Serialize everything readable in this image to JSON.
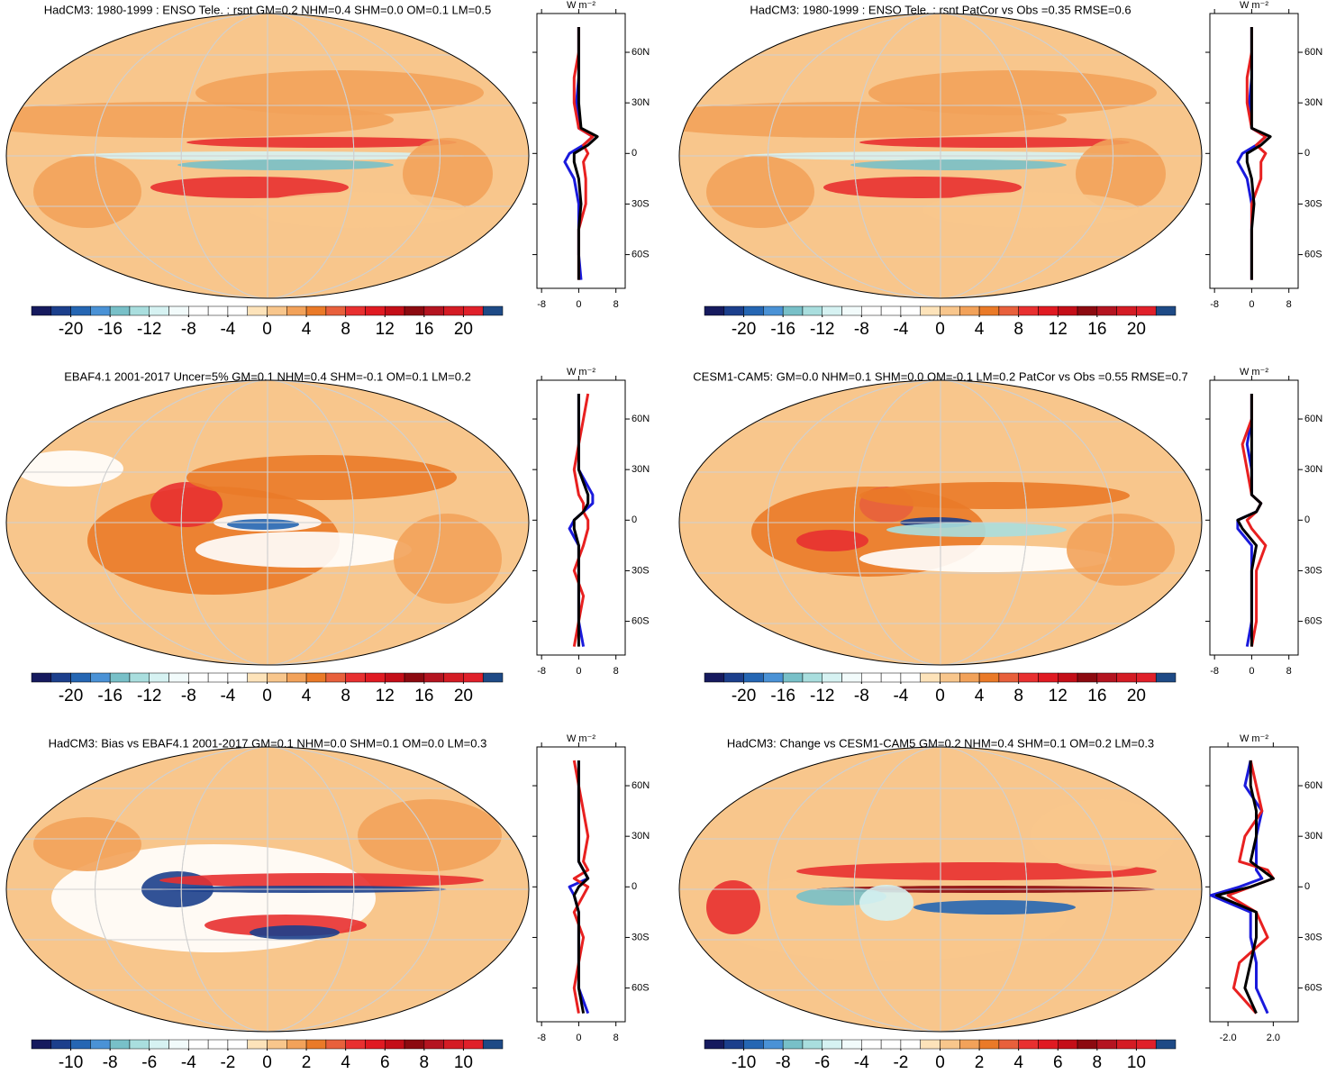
{
  "chart_data": [
    {
      "type": "map",
      "title": "HadCM3: 1980-1999 : ENSO Tele. : rsnt GM=0.2 NHM=0.4 SHM=0.0 OM=0.1 LM=0.5",
      "colorbar": {
        "colors": [
          "#161a5e",
          "#1c3f8c",
          "#2566b3",
          "#4a92d6",
          "#78c0c8",
          "#a9dede",
          "#d6f2f2",
          "#f2fbfb",
          "#ffffff",
          "#ffffff",
          "#ffffff",
          "#fde3ba",
          "#f8c68c",
          "#f2a25a",
          "#ea7a28",
          "#e8603c",
          "#e83030",
          "#e01a22",
          "#c40e18",
          "#8c0a10",
          "#b41420",
          "#d41c24",
          "#e0202a",
          "#1e4a86"
        ],
        "lim": [
          -24,
          24
        ],
        "ticks": [
          -20,
          -16,
          -12,
          -8,
          -4,
          0,
          4,
          8,
          12,
          16,
          20
        ]
      },
      "zonal": {
        "unit": "W m⁻²",
        "xlim": [
          -9,
          10
        ],
        "xticks": [
          -8,
          0,
          8
        ],
        "ylim": [
          -80,
          83
        ],
        "yticks": [
          {
            "value": 60,
            "label": "60N"
          },
          {
            "value": 30,
            "label": "30N"
          },
          0,
          {
            "value": -30,
            "label": "30S"
          },
          {
            "value": -60,
            "label": "60S"
          }
        ],
        "y": [
          -75,
          -60,
          -45,
          -30,
          -15,
          -5,
          0,
          5,
          10,
          15,
          30,
          45,
          60,
          75
        ],
        "series": [
          {
            "color": "#1a1adc",
            "values": [
              0.5,
              0,
              0,
              0,
              -1,
              -3,
              -2,
              1,
              3,
              0,
              -0.5,
              0,
              0,
              0
            ]
          },
          {
            "color": "#e82020",
            "values": [
              0,
              0,
              0,
              1.5,
              1.5,
              1,
              2,
              1,
              3,
              0,
              -1,
              -1,
              0,
              0
            ]
          },
          {
            "color": "#000000",
            "values": [
              0,
              0,
              0,
              0.5,
              0,
              -1,
              -1,
              2,
              4,
              0.5,
              0,
              0,
              0,
              0
            ]
          }
        ]
      }
    },
    {
      "type": "map",
      "title": "HadCM3: 1980-1999 : ENSO Tele. : rsnt PatCor vs Obs =0.35 RMSE=0.6",
      "colorbar": {
        "colors": [
          "#161a5e",
          "#1c3f8c",
          "#2566b3",
          "#4a92d6",
          "#78c0c8",
          "#a9dede",
          "#d6f2f2",
          "#f2fbfb",
          "#ffffff",
          "#ffffff",
          "#ffffff",
          "#fde3ba",
          "#f8c68c",
          "#f2a25a",
          "#ea7a28",
          "#e8603c",
          "#e83030",
          "#e01a22",
          "#c40e18",
          "#8c0a10",
          "#b41420",
          "#d41c24",
          "#e0202a",
          "#1e4a86"
        ],
        "lim": [
          -24,
          24
        ],
        "ticks": [
          -20,
          -16,
          -12,
          -8,
          -4,
          0,
          4,
          8,
          12,
          16,
          20
        ]
      },
      "zonal": {
        "unit": "W m⁻²",
        "xlim": [
          -9,
          10
        ],
        "xticks": [
          -8,
          0,
          8
        ],
        "ylim": [
          -80,
          83
        ],
        "yticks": [
          {
            "value": 60,
            "label": "60N"
          },
          {
            "value": 30,
            "label": "30N"
          },
          0,
          {
            "value": -30,
            "label": "30S"
          },
          {
            "value": -60,
            "label": "60S"
          }
        ],
        "y": [
          -75,
          -60,
          -45,
          -30,
          -15,
          -5,
          0,
          5,
          10,
          15,
          30,
          45,
          60,
          75
        ],
        "series": [
          {
            "color": "#1a1adc",
            "values": [
              0,
              0,
              0,
              0,
              -1,
              -3,
              -2,
              1,
              3,
              0,
              -0.5,
              0,
              0,
              0
            ]
          },
          {
            "color": "#e82020",
            "values": [
              0,
              0,
              0,
              0,
              2,
              2,
              3,
              1,
              3,
              0,
              -1,
              -1,
              0,
              0
            ]
          },
          {
            "color": "#000000",
            "values": [
              0,
              0,
              0,
              0.5,
              0,
              -1,
              -1,
              2,
              4,
              0,
              0,
              0,
              0,
              0
            ]
          }
        ]
      }
    },
    {
      "type": "map",
      "title": "EBAF4.1 2001-2017 Uncer=5% GM=0.1 NHM=0.4 SHM=-0.1 OM=0.1 LM=0.2",
      "colorbar": {
        "colors": [
          "#161a5e",
          "#1c3f8c",
          "#2566b3",
          "#4a92d6",
          "#78c0c8",
          "#a9dede",
          "#d6f2f2",
          "#f2fbfb",
          "#ffffff",
          "#ffffff",
          "#ffffff",
          "#fde3ba",
          "#f8c68c",
          "#f2a25a",
          "#ea7a28",
          "#e8603c",
          "#e83030",
          "#e01a22",
          "#c40e18",
          "#8c0a10",
          "#b41420",
          "#d41c24",
          "#e0202a",
          "#1e4a86"
        ],
        "lim": [
          -24,
          24
        ],
        "ticks": [
          -20,
          -16,
          -12,
          -8,
          -4,
          0,
          4,
          8,
          12,
          16,
          20
        ]
      },
      "zonal": {
        "unit": "W m⁻²",
        "xlim": [
          -9,
          10
        ],
        "xticks": [
          -8,
          0,
          8
        ],
        "ylim": [
          -80,
          83
        ],
        "yticks": [
          {
            "value": 60,
            "label": "60N"
          },
          {
            "value": 30,
            "label": "30N"
          },
          0,
          {
            "value": -30,
            "label": "30S"
          },
          {
            "value": -60,
            "label": "60S"
          }
        ],
        "y": [
          -75,
          -60,
          -45,
          -30,
          -15,
          -5,
          0,
          5,
          10,
          15,
          30,
          45,
          60,
          75
        ],
        "series": [
          {
            "color": "#1a1adc",
            "values": [
              1,
              0,
              0,
              0,
              0,
              -2,
              -1,
              1,
              3,
              3,
              0,
              0,
              0,
              0
            ]
          },
          {
            "color": "#e82020",
            "values": [
              -1,
              0,
              1,
              -1,
              1,
              2,
              2,
              1,
              1,
              0,
              -1,
              0,
              1,
              2
            ]
          },
          {
            "color": "#000000",
            "values": [
              0,
              0,
              0,
              0,
              0,
              -1,
              -1,
              1,
              2,
              2,
              0,
              0,
              0,
              0
            ]
          }
        ]
      }
    },
    {
      "type": "map",
      "title": "CESM1-CAM5: GM=0.0 NHM=0.1 SHM=0.0 OM=-0.1 LM=0.2 PatCor vs Obs =0.55 RMSE=0.7",
      "colorbar": {
        "colors": [
          "#161a5e",
          "#1c3f8c",
          "#2566b3",
          "#4a92d6",
          "#78c0c8",
          "#a9dede",
          "#d6f2f2",
          "#f2fbfb",
          "#ffffff",
          "#ffffff",
          "#ffffff",
          "#fde3ba",
          "#f8c68c",
          "#f2a25a",
          "#ea7a28",
          "#e8603c",
          "#e83030",
          "#e01a22",
          "#c40e18",
          "#8c0a10",
          "#b41420",
          "#d41c24",
          "#e0202a",
          "#1e4a86"
        ],
        "lim": [
          -24,
          24
        ],
        "ticks": [
          -20,
          -16,
          -12,
          -8,
          -4,
          0,
          4,
          8,
          12,
          16,
          20
        ]
      },
      "zonal": {
        "unit": "W m⁻²",
        "xlim": [
          -9,
          10
        ],
        "xticks": [
          -8,
          0,
          8
        ],
        "ylim": [
          -80,
          83
        ],
        "yticks": [
          {
            "value": 60,
            "label": "60N"
          },
          {
            "value": 30,
            "label": "30N"
          },
          0,
          {
            "value": -30,
            "label": "30S"
          },
          {
            "value": -60,
            "label": "60S"
          }
        ],
        "y": [
          -75,
          -60,
          -45,
          -30,
          -15,
          -5,
          0,
          5,
          10,
          15,
          30,
          45,
          60,
          75
        ],
        "series": [
          {
            "color": "#1a1adc",
            "values": [
              -1,
              0,
              0,
              0,
              0,
              -3,
              -3,
              1,
              2,
              0,
              0,
              -1,
              0,
              0
            ]
          },
          {
            "color": "#e82020",
            "values": [
              0,
              1,
              1,
              1,
              3,
              0,
              -1,
              1,
              2,
              0,
              -1,
              -2,
              0,
              0
            ]
          },
          {
            "color": "#000000",
            "values": [
              0,
              0,
              0,
              0,
              1,
              -2,
              -3,
              1,
              2,
              0,
              0,
              0,
              0,
              0
            ]
          }
        ]
      }
    },
    {
      "type": "map",
      "title": "HadCM3: Bias vs EBAF4.1 2001-2017 GM=0.1 NHM=0.0 SHM=0.1 OM=0.0 LM=0.3",
      "colorbar": {
        "colors": [
          "#161a5e",
          "#1c3f8c",
          "#2566b3",
          "#4a92d6",
          "#78c0c8",
          "#a9dede",
          "#d6f2f2",
          "#f2fbfb",
          "#ffffff",
          "#ffffff",
          "#ffffff",
          "#fde3ba",
          "#f8c68c",
          "#f2a25a",
          "#ea7a28",
          "#e8603c",
          "#e83030",
          "#e01a22",
          "#c40e18",
          "#8c0a10",
          "#b41420",
          "#d41c24",
          "#e0202a",
          "#1e4a86"
        ],
        "lim": [
          -12,
          12
        ],
        "ticks": [
          -10,
          -8,
          -6,
          -4,
          -2,
          0,
          2,
          4,
          6,
          8,
          10
        ]
      },
      "zonal": {
        "unit": "W m⁻²",
        "xlim": [
          -9,
          10
        ],
        "xticks": [
          -8,
          0,
          8
        ],
        "ylim": [
          -80,
          83
        ],
        "yticks": [
          {
            "value": 60,
            "label": "60N"
          },
          {
            "value": 30,
            "label": "30N"
          },
          0,
          {
            "value": -30,
            "label": "30S"
          },
          {
            "value": -60,
            "label": "60S"
          }
        ],
        "y": [
          -75,
          -60,
          -45,
          -30,
          -15,
          -5,
          0,
          5,
          10,
          15,
          30,
          45,
          60,
          75
        ],
        "series": [
          {
            "color": "#1a1adc",
            "values": [
              2,
              0,
              0,
              0,
              0,
              -1,
              -2,
              2,
              1,
              0,
              0,
              0,
              0,
              0
            ]
          },
          {
            "color": "#e82020",
            "values": [
              0,
              -1,
              0,
              1,
              -1,
              1,
              2,
              -1,
              2,
              1,
              2,
              1,
              0,
              -1
            ]
          },
          {
            "color": "#000000",
            "values": [
              1,
              0,
              0,
              0,
              0,
              -1,
              0,
              2,
              1,
              0,
              0,
              0,
              0,
              0
            ]
          }
        ]
      }
    },
    {
      "type": "map",
      "title": "HadCM3: Change vs CESM1-CAM5 GM=0.2 NHM=0.4 SHM=0.1 OM=0.2 LM=0.3",
      "colorbar": {
        "colors": [
          "#161a5e",
          "#1c3f8c",
          "#2566b3",
          "#4a92d6",
          "#78c0c8",
          "#a9dede",
          "#d6f2f2",
          "#f2fbfb",
          "#ffffff",
          "#ffffff",
          "#ffffff",
          "#fde3ba",
          "#f8c68c",
          "#f2a25a",
          "#ea7a28",
          "#e8603c",
          "#e83030",
          "#e01a22",
          "#c40e18",
          "#8c0a10",
          "#b41420",
          "#d41c24",
          "#e0202a",
          "#1e4a86"
        ],
        "lim": [
          -12,
          12
        ],
        "ticks": [
          -10,
          -8,
          -6,
          -4,
          -2,
          0,
          2,
          4,
          6,
          8,
          10
        ]
      },
      "zonal": {
        "unit": "W m⁻²",
        "xlim": [
          -3.6,
          4.2
        ],
        "xticks": [
          {
            "value": -2,
            "label": "-2.0"
          },
          {
            "value": 2,
            "label": "2.0"
          }
        ],
        "ylim": [
          -80,
          83
        ],
        "yticks": [
          {
            "value": 60,
            "label": "60N"
          },
          {
            "value": 30,
            "label": "30N"
          },
          0,
          {
            "value": -30,
            "label": "30S"
          },
          {
            "value": -60,
            "label": "60S"
          }
        ],
        "y": [
          -75,
          -60,
          -45,
          -30,
          -15,
          -5,
          0,
          5,
          10,
          15,
          30,
          45,
          60,
          75
        ],
        "series": [
          {
            "color": "#1a1adc",
            "values": [
              1.5,
              0.5,
              0.5,
              0,
              0,
              -3.5,
              -1,
              1,
              0.5,
              0.5,
              0.5,
              1,
              -0.5,
              0
            ]
          },
          {
            "color": "#e82020",
            "values": [
              0.5,
              -1.5,
              -1,
              1.5,
              0.5,
              -2,
              0,
              2,
              1.5,
              -1,
              -0.5,
              1,
              0.5,
              0
            ]
          },
          {
            "color": "#000000",
            "values": [
              0.5,
              -0.5,
              0,
              0.5,
              0.5,
              -3,
              0,
              2,
              1,
              0,
              0.5,
              0.5,
              0,
              0
            ]
          }
        ]
      }
    }
  ]
}
